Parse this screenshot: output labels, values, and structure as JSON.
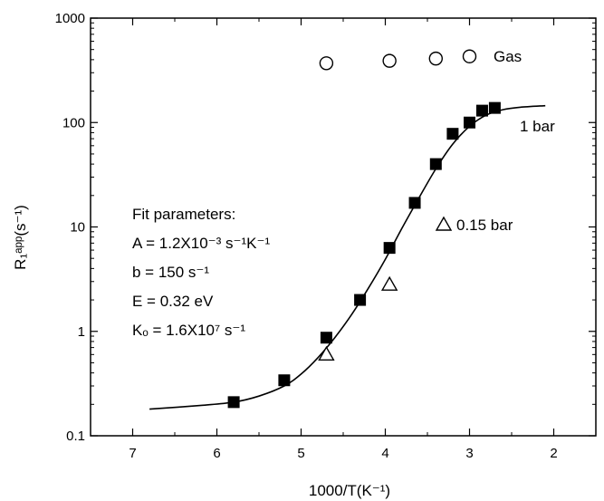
{
  "chart_data": {
    "type": "scatter",
    "xlabel": "1000/T(K⁻¹)",
    "ylabel": "R₁ᵃᵖᵖ(s⁻¹)",
    "xlim": [
      7.5,
      1.5
    ],
    "x_reversed": true,
    "ylim": [
      0.1,
      1000
    ],
    "y_scale": "log",
    "grid": false,
    "x_ticks": [
      "7",
      "6",
      "5",
      "4",
      "3",
      "2"
    ],
    "x_tick_values": [
      7,
      6,
      5,
      4,
      3,
      2
    ],
    "y_ticks": [
      "0.1",
      "1",
      "10",
      "100",
      "1000"
    ],
    "y_tick_values": [
      0.1,
      1,
      10,
      100,
      1000
    ],
    "series": [
      {
        "name": "Gas",
        "marker": "open-circle",
        "x": [
          4.7,
          3.95,
          3.4,
          3.0
        ],
        "y": [
          370,
          390,
          410,
          430
        ]
      },
      {
        "name": "1 bar",
        "marker": "filled-square",
        "x": [
          5.8,
          5.2,
          4.7,
          4.3,
          3.95,
          3.65,
          3.4,
          3.2,
          3.0,
          2.85,
          2.7
        ],
        "y": [
          0.21,
          0.34,
          0.87,
          2.0,
          6.3,
          17,
          40,
          78,
          100,
          130,
          138
        ]
      },
      {
        "name": "0.15 bar",
        "marker": "open-triangle",
        "x": [
          4.7,
          3.95
        ],
        "y": [
          0.6,
          2.8
        ]
      },
      {
        "name": "fit",
        "marker": "line",
        "x": [
          6.8,
          6.2,
          5.8,
          5.5,
          5.2,
          5.0,
          4.8,
          4.6,
          4.4,
          4.2,
          4.0,
          3.8,
          3.6,
          3.4,
          3.2,
          3.0,
          2.8,
          2.6,
          2.4,
          2.1
        ],
        "y": [
          0.18,
          0.195,
          0.21,
          0.24,
          0.3,
          0.39,
          0.56,
          0.87,
          1.45,
          2.6,
          4.9,
          9.8,
          19,
          36,
          62,
          92,
          118,
          133,
          140,
          145
        ]
      }
    ],
    "annotations": {
      "gas": "Gas",
      "one_bar": "1 bar",
      "low_bar": "0.15 bar",
      "fit_title": "Fit parameters:",
      "fit_A": "A = 1.2X10⁻³ s⁻¹K⁻¹",
      "fit_b": "b = 150 s⁻¹",
      "fit_E": "E = 0.32 eV",
      "fit_K": "Kₒ = 1.6X10⁷ s⁻¹"
    }
  }
}
